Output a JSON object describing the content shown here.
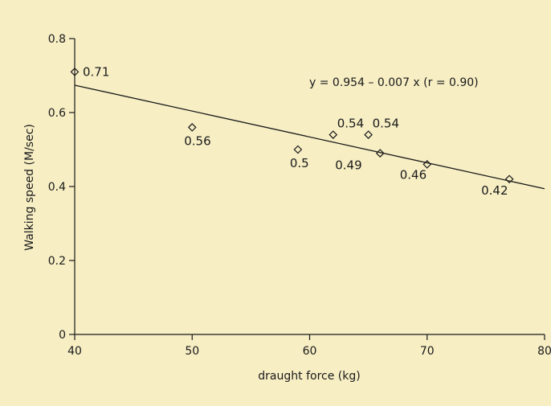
{
  "chart_data": {
    "type": "scatter",
    "title": "",
    "xlabel": "draught force (kg)",
    "ylabel": "Walking speed (M/sec)",
    "xlim": [
      40,
      80
    ],
    "ylim": [
      0,
      0.8
    ],
    "xticks": [
      40,
      50,
      60,
      70,
      80
    ],
    "yticks": [
      0,
      0.2,
      0.4,
      0.6,
      0.8
    ],
    "x_tick_labels": [
      "40",
      "50",
      "60",
      "70",
      "80"
    ],
    "y_tick_labels": [
      "0",
      "0.2",
      "0.4",
      "0.6",
      "0.8"
    ],
    "grid": false,
    "points": [
      {
        "x": 40,
        "y": 0.71,
        "label": "0.71"
      },
      {
        "x": 50,
        "y": 0.56,
        "label": "0.56"
      },
      {
        "x": 59,
        "y": 0.5,
        "label": "0.5"
      },
      {
        "x": 62,
        "y": 0.54,
        "label": "0.54"
      },
      {
        "x": 65,
        "y": 0.54,
        "label": "0.54"
      },
      {
        "x": 66,
        "y": 0.49,
        "label": "0.49"
      },
      {
        "x": 70,
        "y": 0.46,
        "label": "0.46"
      },
      {
        "x": 77,
        "y": 0.42,
        "label": "0.42"
      }
    ],
    "regression": {
      "intercept": 0.954,
      "slope": -0.007,
      "x_range": [
        40,
        80
      ],
      "equation_label": "y = 0.954 – 0.007 x (r = 0.90)"
    },
    "colors": {
      "background": "#f7eec4",
      "ink": "#1a1a1a"
    }
  }
}
